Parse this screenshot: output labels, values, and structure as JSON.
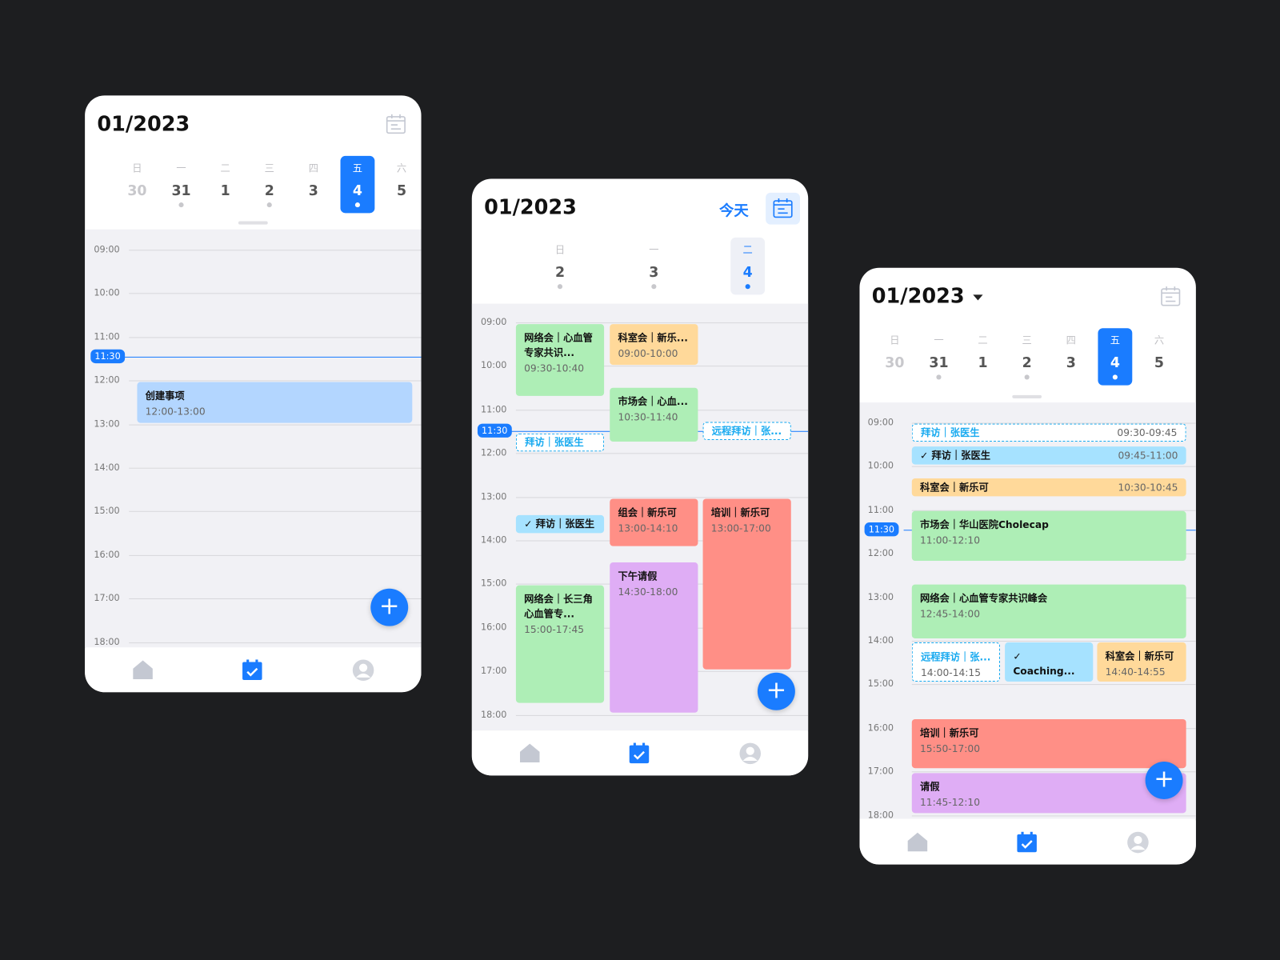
{
  "colors": {
    "accent": "#1a7cff",
    "background": "#1d1e20"
  },
  "hours": [
    "09:00",
    "10:00",
    "11:00",
    "12:00",
    "13:00",
    "14:00",
    "15:00",
    "16:00",
    "17:00",
    "18:00"
  ],
  "now": "11:30",
  "nav": [
    "home-icon",
    "calendar-check-icon",
    "user-icon"
  ],
  "phones": [
    {
      "title": "01/2023",
      "days": [
        {
          "wd": "日",
          "dn": "30"
        },
        {
          "wd": "一",
          "dn": "31",
          "dot": true
        },
        {
          "wd": "二",
          "dn": "1"
        },
        {
          "wd": "三",
          "dn": "2",
          "dot": true
        },
        {
          "wd": "四",
          "dn": "3"
        },
        {
          "wd": "五",
          "dn": "4",
          "dot": true,
          "selected": true
        },
        {
          "wd": "六",
          "dn": "5"
        }
      ],
      "events": [
        {
          "title": "创建事项",
          "time": "12:00-13:00",
          "color": "lblue"
        }
      ]
    },
    {
      "title": "01/2023",
      "today": "今天",
      "days": [
        {
          "wd": "日",
          "dn": "2",
          "dot": true
        },
        {
          "wd": "一",
          "dn": "3",
          "dot": true
        },
        {
          "wd": "二",
          "dn": "4",
          "dot": true,
          "selected": true
        }
      ],
      "events": [
        {
          "title": "网络会｜心血管专家共识...",
          "time": "09:30-10:40",
          "color": "green"
        },
        {
          "title": "科室会｜新乐...",
          "time": "09:00-10:00",
          "color": "orange"
        },
        {
          "title": "市场会｜心血...",
          "time": "10:30-11:40",
          "color": "green"
        },
        {
          "title": "拜访｜张医生",
          "color": "dash"
        },
        {
          "title": "远程拜访｜张...",
          "color": "dash"
        },
        {
          "title": "✓ 拜访｜张医生",
          "color": "blue"
        },
        {
          "title": "组会｜新乐可",
          "time": "13:00-14:10",
          "color": "red"
        },
        {
          "title": "培训｜新乐可",
          "time": "13:00-17:00",
          "color": "red"
        },
        {
          "title": "下午请假",
          "time": "14:30-18:00",
          "color": "purple"
        },
        {
          "title": "网络会｜长三角心血管专...",
          "time": "15:00-17:45",
          "color": "green"
        }
      ]
    },
    {
      "title": "01/2023",
      "days": [
        {
          "wd": "日",
          "dn": "30"
        },
        {
          "wd": "一",
          "dn": "31",
          "dot": true
        },
        {
          "wd": "二",
          "dn": "1"
        },
        {
          "wd": "三",
          "dn": "2",
          "dot": true
        },
        {
          "wd": "四",
          "dn": "3"
        },
        {
          "wd": "五",
          "dn": "4",
          "dot": true,
          "selected": true
        },
        {
          "wd": "六",
          "dn": "5"
        }
      ],
      "events": [
        {
          "title": "拜访｜张医生",
          "time": "09:30-09:45",
          "color": "dash"
        },
        {
          "title": "✓ 拜访｜张医生",
          "time": "09:45-11:00",
          "color": "blue"
        },
        {
          "title": "科室会｜新乐可",
          "time": "10:30-10:45",
          "color": "orange"
        },
        {
          "title": "市场会｜华山医院Cholecap",
          "time": "11:00-12:10",
          "color": "green"
        },
        {
          "title": "网络会｜心血管专家共识峰会",
          "time": "12:45-14:00",
          "color": "green"
        },
        {
          "title": "远程拜访｜张...",
          "time": "14:00-14:15",
          "color": "dash"
        },
        {
          "title": "✓ Coaching...",
          "time": "14:20-14:35",
          "color": "blue"
        },
        {
          "title": "科室会｜新乐可",
          "time": "14:40-14:55",
          "color": "orange"
        },
        {
          "title": "培训｜新乐可",
          "time": "15:50-17:00",
          "color": "red"
        },
        {
          "title": "请假",
          "time": "11:45-12:10",
          "color": "purple"
        }
      ]
    }
  ]
}
